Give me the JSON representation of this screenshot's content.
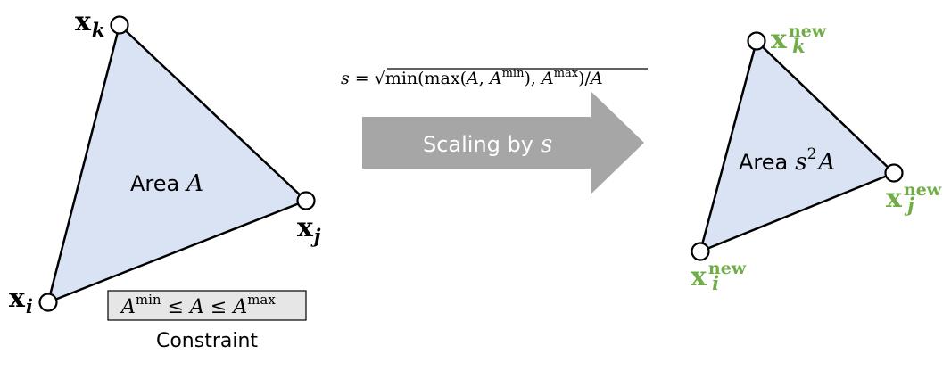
{
  "colors": {
    "triangle_fill": "#dae3f3",
    "new_label": "#70ad47",
    "arrow_fill": "#a6a6a6",
    "constraint_box_fill": "#e7e6e6"
  },
  "original": {
    "vertices": {
      "k": {
        "base": "x",
        "sub": "k"
      },
      "j": {
        "base": "x",
        "sub": "j"
      },
      "i": {
        "base": "x",
        "sub": "i"
      }
    },
    "area": {
      "word": "Area",
      "symbol": "A"
    }
  },
  "formula": {
    "lhs": "s",
    "eq": "=",
    "sqrt": "√",
    "min_open": "min(max(",
    "A1": "A",
    "comma1": ", ",
    "A2": "A",
    "min_sup": "min",
    "paren_close1": ")",
    "comma2": ", ",
    "A3": "A",
    "max_sup": "max",
    "paren_close2": ")/",
    "A4": "A"
  },
  "arrow": {
    "text": "Scaling by",
    "symbol": "s"
  },
  "scaled": {
    "vertices": {
      "k": {
        "base": "x",
        "sub": "k",
        "sup": "new"
      },
      "j": {
        "base": "x",
        "sub": "j",
        "sup": "new"
      },
      "i": {
        "base": "x",
        "sub": "i",
        "sup": "new"
      }
    },
    "area": {
      "word": "Area",
      "symbol": "s",
      "exp": "2",
      "symbol2": "A"
    }
  },
  "constraint": {
    "A1": "A",
    "min_sup": "min",
    "le1": " ≤ ",
    "A2": "A",
    "le2": " ≤ ",
    "A3": "A",
    "max_sup": "max",
    "caption": "Constraint"
  }
}
